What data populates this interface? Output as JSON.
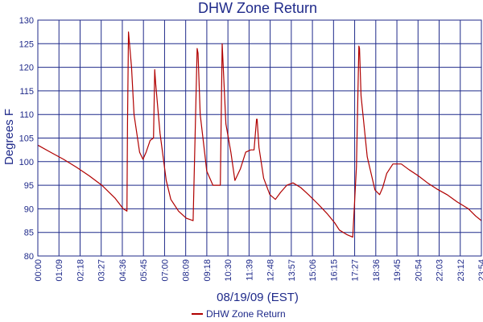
{
  "chart_data": {
    "type": "line",
    "title": "DHW Zone Return",
    "xlabel": "08/19/09 (EST)",
    "ylabel": "Degrees F",
    "ylim": [
      80,
      130
    ],
    "yticks": [
      80,
      85,
      90,
      95,
      100,
      105,
      110,
      115,
      120,
      125,
      130
    ],
    "xlim_minutes": [
      0,
      1434
    ],
    "xtick_labels": [
      "00:00",
      "01:09",
      "02:18",
      "03:27",
      "04:36",
      "05:45",
      "07:00",
      "08:09",
      "09:18",
      "10:30",
      "11:39",
      "12:48",
      "13:57",
      "15:06",
      "16:15",
      "17:27",
      "18:36",
      "19:45",
      "20:54",
      "22:03",
      "23:12",
      "23:54"
    ],
    "grid": true,
    "legend_position": "bottom",
    "colors": {
      "series": "#b00000",
      "grid": "#1f2a8a",
      "text": "#1f2a8a"
    },
    "series": [
      {
        "name": "DHW Zone Return",
        "x_time": [
          "00:00",
          "00:41",
          "01:23",
          "02:05",
          "02:46",
          "03:27",
          "04:09",
          "04:36",
          "04:48",
          "04:50",
          "04:53",
          "05:03",
          "05:11",
          "05:29",
          "05:40",
          "05:50",
          "06:03",
          "06:14",
          "06:18",
          "06:21",
          "06:35",
          "06:55",
          "07:10",
          "07:35",
          "08:00",
          "08:22",
          "08:35",
          "08:38",
          "08:45",
          "09:00",
          "09:06",
          "09:26",
          "09:50",
          "09:56",
          "09:58",
          "10:08",
          "10:24",
          "10:37",
          "10:55",
          "11:12",
          "11:28",
          "11:39",
          "11:47",
          "11:49",
          "11:55",
          "12:10",
          "12:30",
          "12:48",
          "13:05",
          "13:25",
          "13:45",
          "14:10",
          "14:35",
          "15:06",
          "15:35",
          "16:00",
          "16:15",
          "16:40",
          "16:58",
          "17:10",
          "17:18",
          "17:20",
          "17:25",
          "17:45",
          "18:10",
          "18:25",
          "18:35",
          "18:48",
          "19:08",
          "19:35",
          "20:00",
          "20:30",
          "21:00",
          "21:30",
          "22:03",
          "22:35",
          "23:12",
          "23:35",
          "23:54"
        ],
        "y": [
          103.5,
          102.0,
          100.5,
          98.8,
          97.0,
          95.0,
          92.3,
          90.0,
          89.5,
          108.0,
          127.5,
          120.0,
          110.0,
          102.0,
          100.5,
          102.0,
          104.5,
          105.0,
          119.5,
          116.5,
          106.0,
          96.0,
          92.0,
          89.5,
          88.0,
          87.5,
          124.0,
          123.0,
          110.0,
          101.5,
          98.0,
          95.0,
          95.0,
          125.0,
          122.0,
          108.0,
          102.0,
          96.0,
          98.5,
          102.0,
          102.5,
          102.5,
          109.0,
          109.0,
          103.0,
          96.5,
          93.0,
          92.0,
          93.5,
          95.0,
          95.5,
          94.5,
          93.0,
          91.0,
          89.0,
          87.0,
          85.5,
          84.5,
          84.0,
          99.0,
          124.5,
          124.0,
          114.0,
          101.0,
          94.0,
          93.0,
          94.5,
          97.5,
          99.5,
          99.5,
          98.3,
          97.0,
          95.5,
          94.2,
          93.0,
          91.5,
          90.0,
          88.5,
          87.5
        ]
      }
    ]
  }
}
